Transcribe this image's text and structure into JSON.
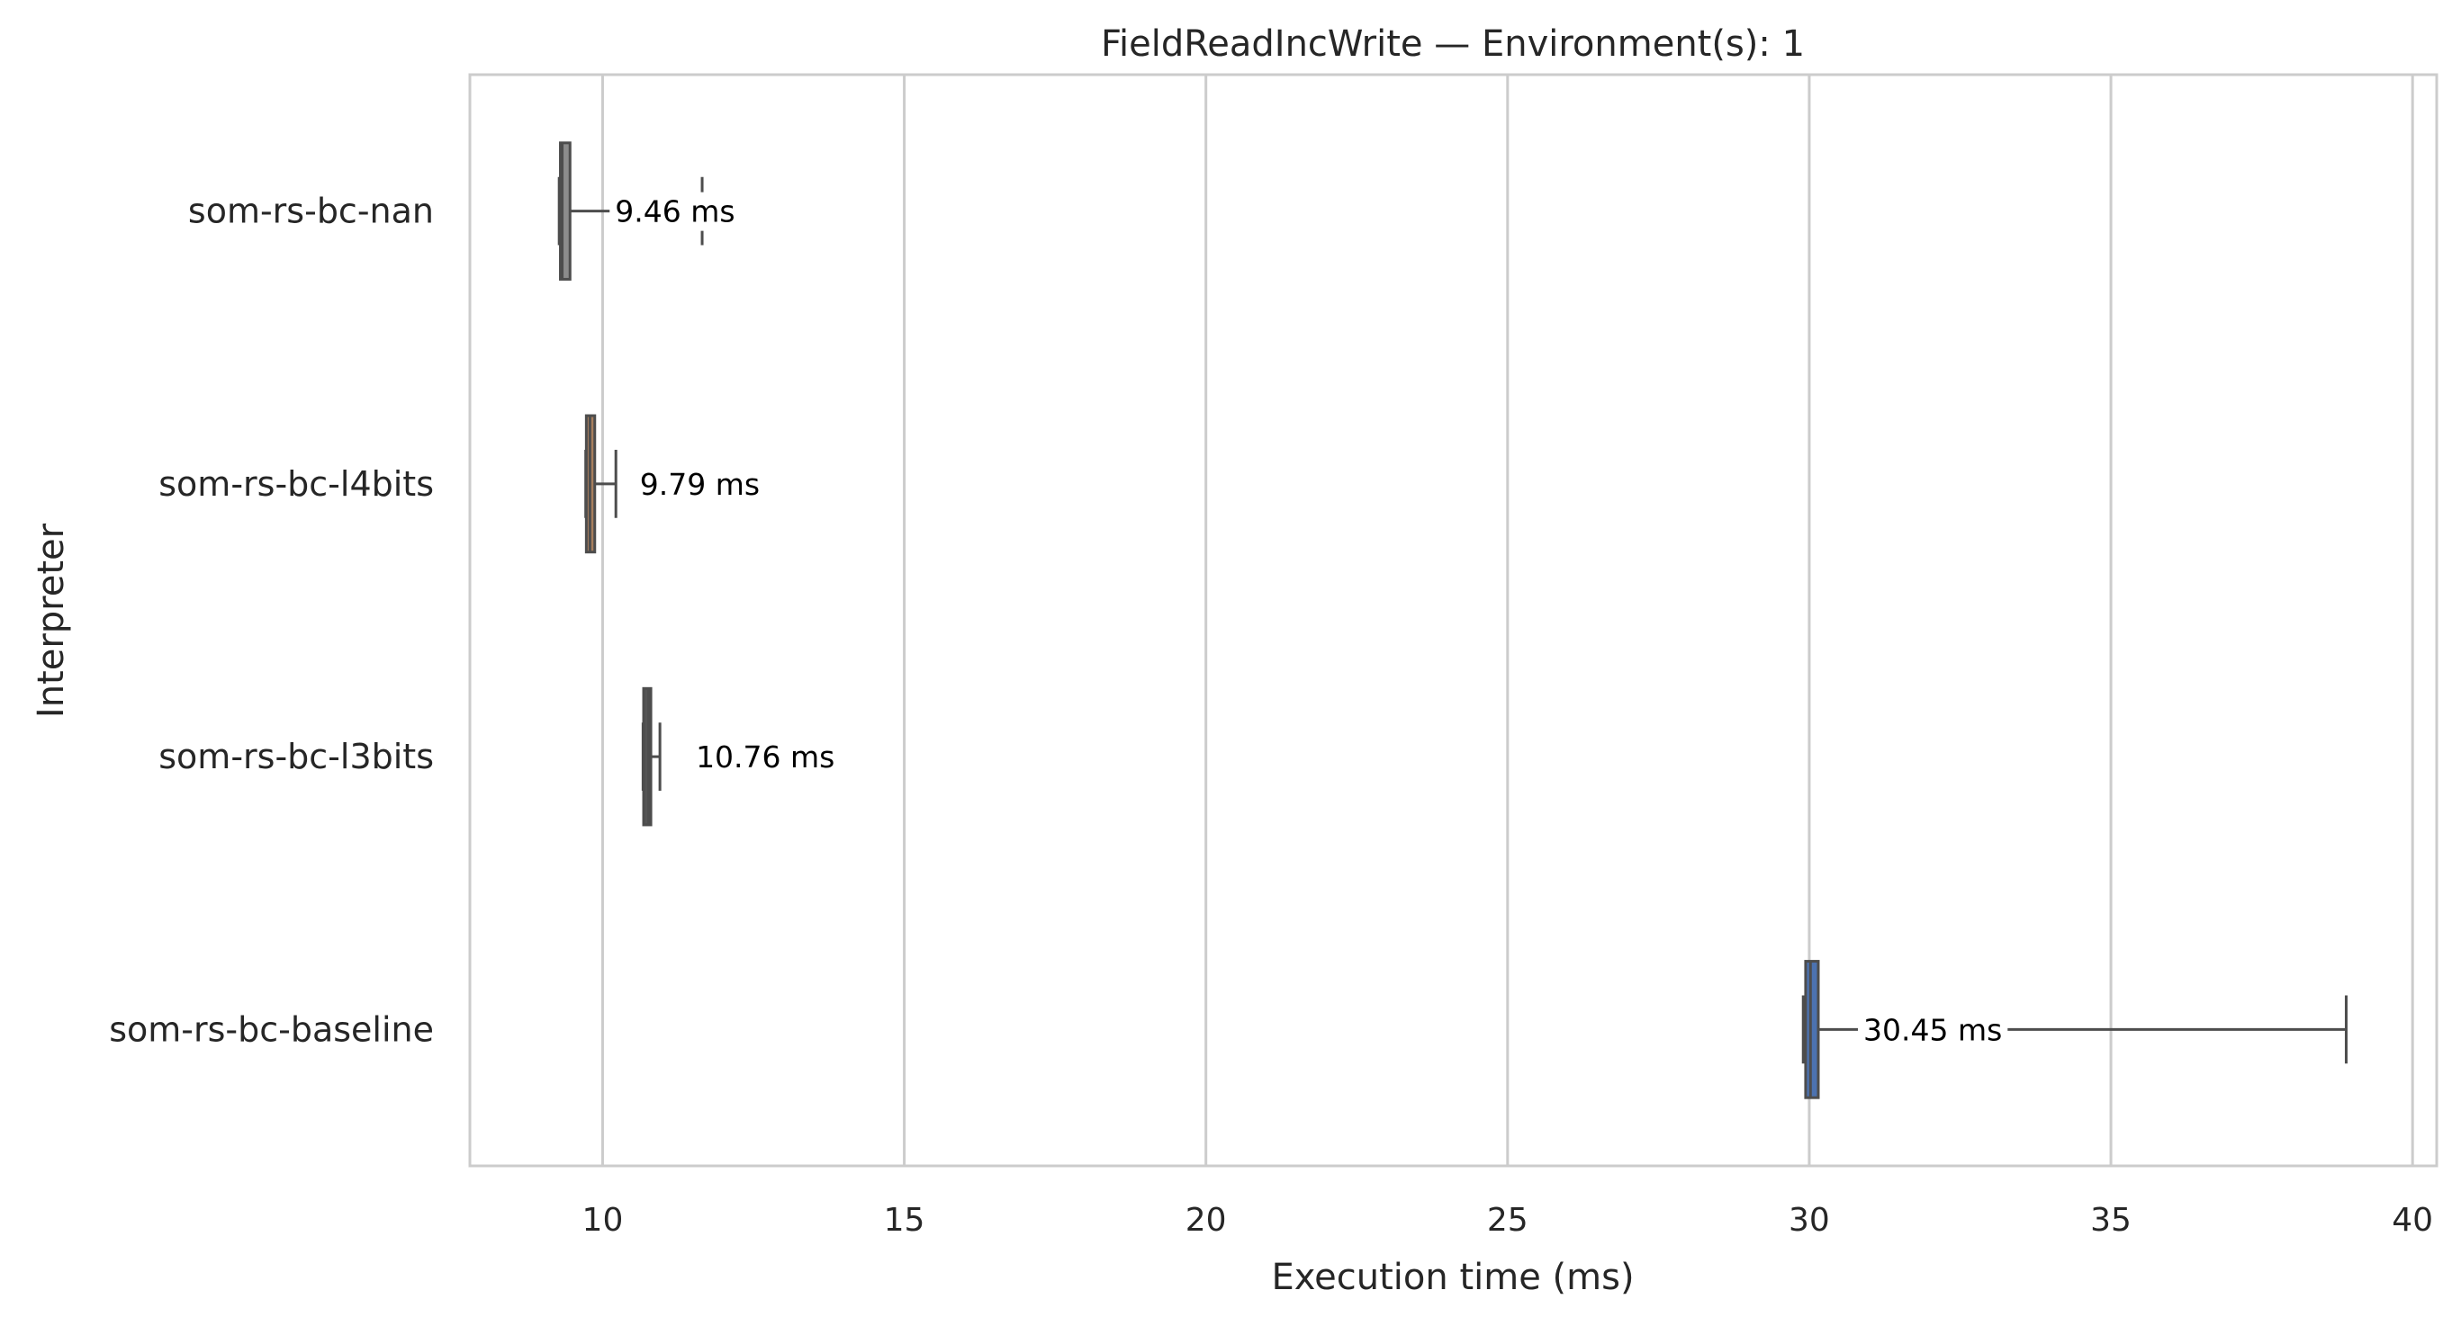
{
  "chart_data": {
    "type": "boxplot",
    "orientation": "horizontal",
    "title": "FieldReadIncWrite — Environment(s): 1",
    "xlabel": "Execution time (ms)",
    "ylabel": "Interpreter",
    "xlim": [
      7.8,
      40.4
    ],
    "xticks": [
      10,
      15,
      20,
      25,
      30,
      35,
      40
    ],
    "grid": true,
    "categories": [
      "som-rs-bc-nan",
      "som-rs-bc-l4bits",
      "som-rs-bc-l3bits",
      "som-rs-bc-baseline"
    ],
    "series": [
      {
        "category": "som-rs-bc-nan",
        "color": "#8c8c8c",
        "whislo": 9.28,
        "q1": 9.3,
        "median": 9.33,
        "q3": 9.46,
        "whishi": 11.65,
        "label": "9.46 ms"
      },
      {
        "category": "som-rs-bc-l4bits",
        "color": "#a87f5e",
        "whislo": 9.72,
        "q1": 9.73,
        "median": 9.79,
        "q3": 9.87,
        "whishi": 10.22,
        "label": "9.79 ms"
      },
      {
        "category": "som-rs-bc-l3bits",
        "color": "#555555",
        "whislo": 10.67,
        "q1": 10.68,
        "median": 10.76,
        "q3": 10.8,
        "whishi": 10.95,
        "label": "10.76 ms"
      },
      {
        "category": "som-rs-bc-baseline",
        "color": "#4c72b0",
        "whislo": 29.9,
        "q1": 29.94,
        "median": 30.02,
        "q3": 30.15,
        "whishi": 38.9,
        "label": "30.45 ms"
      }
    ]
  }
}
